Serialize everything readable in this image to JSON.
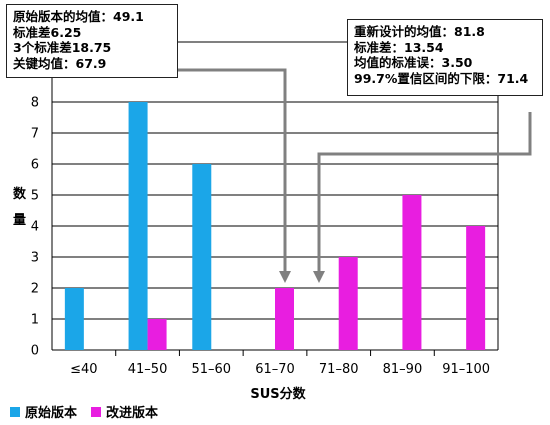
{
  "chart_data": {
    "type": "bar",
    "categories": [
      "≤40",
      "41–50",
      "51–60",
      "61–70",
      "71–80",
      "81–90",
      "91–100"
    ],
    "series": [
      {
        "name": "原始版本",
        "values": [
          2,
          8,
          6,
          0,
          0,
          0,
          0
        ],
        "color": "#1ba6e8"
      },
      {
        "name": "改进版本",
        "values": [
          0,
          1,
          0,
          2,
          3,
          5,
          4
        ],
        "color": "#e81ee0"
      }
    ],
    "xlabel": "SUS分数",
    "ylabel": "数量",
    "ylim": [
      0,
      8
    ],
    "yticks": [
      0,
      1,
      2,
      3,
      4,
      5,
      6,
      7,
      8
    ],
    "grid": true,
    "legend_position": "bottom-left",
    "annotations": {
      "original": [
        "原始版本的均值：49.1",
        "标准差6.25",
        "3个标准差18.75",
        "关键均值：67.9"
      ],
      "redesign": [
        "重新设计的均值：81.8",
        "标准差：13.54",
        "均值的标准误：3.50",
        "99.7%置信区间的下限：71.4"
      ]
    }
  }
}
